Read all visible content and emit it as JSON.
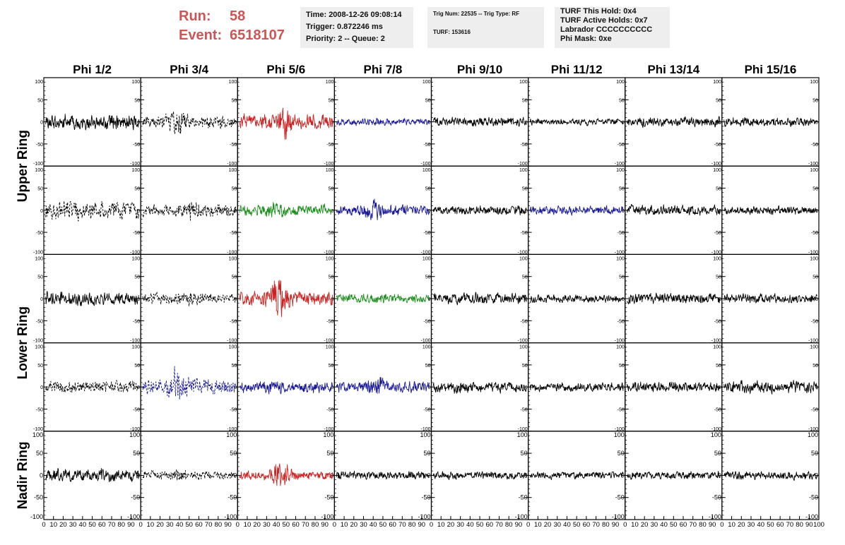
{
  "header": {
    "run_label": "Run:",
    "run_value": "58",
    "event_label": "Event:",
    "event_value": "6518107",
    "time_lines": [
      "Time: 2008-12-26 09:08:14",
      "Trigger: 0.872246 ms",
      "Priority: 2 -- Queue: 2"
    ],
    "trig_lines": [
      "Trig Num: 22535 -- Trig Type: RF",
      "",
      "TURF: 153616"
    ],
    "turf_lines": [
      "TURF This Hold: 0x4",
      "TURF Active Holds: 0x7",
      "Labrador CCCCCCCCCC",
      "Phi Mask: 0xe"
    ]
  },
  "colors": {
    "black": "#000000",
    "red": "#cc2222",
    "blue": "#1a1a99",
    "green": "#1f8f1f"
  },
  "chart_data": {
    "type": "line",
    "title": "",
    "columns": [
      "Phi 1/2",
      "Phi 3/4",
      "Phi 5/6",
      "Phi 7/8",
      "Phi 9/10",
      "Phi 11/12",
      "Phi 13/14",
      "Phi 15/16"
    ],
    "row_labels": [
      {
        "label": "Upper Ring",
        "rows": [
          0,
          1
        ]
      },
      {
        "label": "Lower Ring",
        "rows": [
          2,
          3
        ]
      },
      {
        "label": "Nadir Ring",
        "rows": [
          4
        ]
      }
    ],
    "ylim": [
      -100,
      100
    ],
    "xlim": [
      0,
      100
    ],
    "y_ticks": [
      100,
      50,
      0,
      -50,
      -100
    ],
    "y_tick_labels": [
      "100",
      "50",
      "0",
      "-50",
      "-100"
    ],
    "x_ticks": [
      0,
      10,
      20,
      30,
      40,
      50,
      60,
      70,
      80,
      90,
      100
    ],
    "x_tick_labels": [
      "0",
      "10",
      "20",
      "30",
      "40",
      "50",
      "60",
      "70",
      "80",
      "90",
      "100"
    ],
    "traces": [
      [
        {
          "color": "black",
          "dashed": false,
          "amp": 22,
          "burst": 0,
          "burst_center": 0.5,
          "seed": 1
        },
        {
          "color": "black",
          "dashed": true,
          "amp": 18,
          "burst": 22,
          "burst_center": 0.38,
          "seed": 2
        },
        {
          "color": "red",
          "dashed": false,
          "amp": 22,
          "burst": 35,
          "burst_center": 0.45,
          "seed": 3
        },
        {
          "color": "blue",
          "dashed": false,
          "amp": 10,
          "burst": 5,
          "burst_center": 0.4,
          "seed": 4
        },
        {
          "color": "black",
          "dashed": false,
          "amp": 13,
          "burst": 0,
          "burst_center": 0.5,
          "seed": 5
        },
        {
          "color": "black",
          "dashed": false,
          "amp": 9,
          "burst": 0,
          "burst_center": 0.5,
          "seed": 6
        },
        {
          "color": "black",
          "dashed": false,
          "amp": 14,
          "burst": 0,
          "burst_center": 0.5,
          "seed": 7
        },
        {
          "color": "black",
          "dashed": false,
          "amp": 13,
          "burst": 0,
          "burst_center": 0.5,
          "seed": 8
        }
      ],
      [
        {
          "color": "black",
          "dashed": true,
          "amp": 26,
          "burst": 0,
          "burst_center": 0.5,
          "seed": 11
        },
        {
          "color": "black",
          "dashed": true,
          "amp": 18,
          "burst": 12,
          "burst_center": 0.55,
          "seed": 12
        },
        {
          "color": "green",
          "dashed": false,
          "amp": 16,
          "burst": 8,
          "burst_center": 0.4,
          "seed": 13
        },
        {
          "color": "blue",
          "dashed": false,
          "amp": 16,
          "burst": 14,
          "burst_center": 0.4,
          "seed": 14
        },
        {
          "color": "black",
          "dashed": false,
          "amp": 13,
          "burst": 0,
          "burst_center": 0.5,
          "seed": 15
        },
        {
          "color": "blue",
          "dashed": false,
          "amp": 12,
          "burst": 0,
          "burst_center": 0.5,
          "seed": 16
        },
        {
          "color": "black",
          "dashed": false,
          "amp": 14,
          "burst": 0,
          "burst_center": 0.5,
          "seed": 17
        },
        {
          "color": "black",
          "dashed": false,
          "amp": 13,
          "burst": 0,
          "burst_center": 0.5,
          "seed": 18
        }
      ],
      [
        {
          "color": "black",
          "dashed": false,
          "amp": 18,
          "burst": 0,
          "burst_center": 0.5,
          "seed": 21
        },
        {
          "color": "black",
          "dashed": true,
          "amp": 16,
          "burst": 8,
          "burst_center": 0.5,
          "seed": 22
        },
        {
          "color": "red",
          "dashed": false,
          "amp": 20,
          "burst": 45,
          "burst_center": 0.42,
          "seed": 23
        },
        {
          "color": "green",
          "dashed": false,
          "amp": 13,
          "burst": 4,
          "burst_center": 0.5,
          "seed": 24
        },
        {
          "color": "black",
          "dashed": false,
          "amp": 16,
          "burst": 0,
          "burst_center": 0.5,
          "seed": 25
        },
        {
          "color": "black",
          "dashed": false,
          "amp": 11,
          "burst": 0,
          "burst_center": 0.5,
          "seed": 26
        },
        {
          "color": "black",
          "dashed": false,
          "amp": 16,
          "burst": 0,
          "burst_center": 0.5,
          "seed": 27
        },
        {
          "color": "black",
          "dashed": false,
          "amp": 13,
          "burst": 0,
          "burst_center": 0.5,
          "seed": 28
        }
      ],
      [
        {
          "color": "black",
          "dashed": true,
          "amp": 18,
          "burst": 0,
          "burst_center": 0.5,
          "seed": 31
        },
        {
          "color": "blue",
          "dashed": true,
          "amp": 22,
          "burst": 35,
          "burst_center": 0.38,
          "seed": 32
        },
        {
          "color": "blue",
          "dashed": false,
          "amp": 16,
          "burst": 6,
          "burst_center": 0.4,
          "seed": 33
        },
        {
          "color": "blue",
          "dashed": false,
          "amp": 16,
          "burst": 14,
          "burst_center": 0.45,
          "seed": 34
        },
        {
          "color": "black",
          "dashed": false,
          "amp": 16,
          "burst": 0,
          "burst_center": 0.5,
          "seed": 35
        },
        {
          "color": "black",
          "dashed": false,
          "amp": 13,
          "burst": 0,
          "burst_center": 0.5,
          "seed": 36
        },
        {
          "color": "black",
          "dashed": false,
          "amp": 15,
          "burst": 0,
          "burst_center": 0.5,
          "seed": 37
        },
        {
          "color": "black",
          "dashed": false,
          "amp": 18,
          "burst": 0,
          "burst_center": 0.5,
          "seed": 38
        }
      ],
      [
        {
          "color": "black",
          "dashed": false,
          "amp": 18,
          "burst": 0,
          "burst_center": 0.5,
          "seed": 41
        },
        {
          "color": "black",
          "dashed": true,
          "amp": 13,
          "burst": 6,
          "burst_center": 0.4,
          "seed": 42
        },
        {
          "color": "red",
          "dashed": false,
          "amp": 13,
          "burst": 35,
          "burst_center": 0.45,
          "seed": 43
        },
        {
          "color": "black",
          "dashed": false,
          "amp": 12,
          "burst": 0,
          "burst_center": 0.5,
          "seed": 44
        },
        {
          "color": "black",
          "dashed": false,
          "amp": 11,
          "burst": 0,
          "burst_center": 0.5,
          "seed": 45
        },
        {
          "color": "black",
          "dashed": false,
          "amp": 11,
          "burst": 0,
          "burst_center": 0.5,
          "seed": 46
        },
        {
          "color": "black",
          "dashed": false,
          "amp": 11,
          "burst": 0,
          "burst_center": 0.5,
          "seed": 47
        },
        {
          "color": "black",
          "dashed": false,
          "amp": 12,
          "burst": 0,
          "burst_center": 0.5,
          "seed": 48
        }
      ]
    ]
  }
}
